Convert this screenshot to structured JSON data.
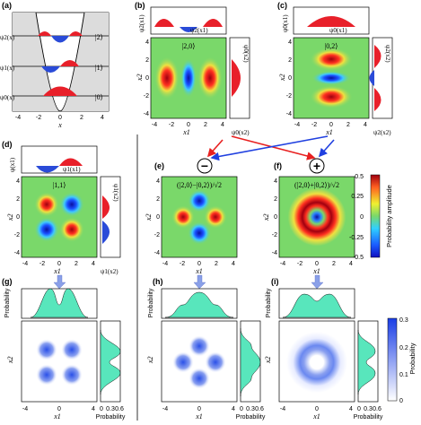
{
  "panels": {
    "a": {
      "label": "(a)",
      "kets": [
        "|2⟩",
        "|1⟩",
        "|0⟩"
      ],
      "psis": [
        "ψ2(x)",
        "ψ1(x)",
        "ψ0(x)"
      ],
      "xticks": [
        "-4",
        "-2",
        "0",
        "2",
        "4"
      ],
      "xlabel": "x"
    },
    "b": {
      "label": "(b)",
      "ket": "|2,0⟩",
      "top_fn": "ψ2(x1)",
      "top_axis": "ψ2(x1)",
      "side_fn": "ψ0(x2)",
      "side_axis": "ψ0(x2)"
    },
    "c": {
      "label": "(c)",
      "ket": "|0,2⟩",
      "top_fn": "ψ0(x1)",
      "top_axis": "ψ0(x1)",
      "side_fn": "ψ2(x2)",
      "side_axis": "ψ2(x2)"
    },
    "d": {
      "label": "(d)",
      "ket": "|1,1⟩",
      "top_fn": "ψ1(x1)",
      "top_axis": "ψ(x1)",
      "side_fn": "ψ1(x2)",
      "side_axis": "ψ1(x2)"
    },
    "e": {
      "label": "(e)",
      "ket": "(|2,0⟩−|0,2⟩)/√2"
    },
    "f": {
      "label": "(f)",
      "ket": "(|2,0⟩+|0,2⟩)/√2"
    },
    "g": {
      "label": "(g)"
    },
    "h": {
      "label": "(h)"
    },
    "i": {
      "label": "(i)"
    }
  },
  "axes": {
    "x1": "x1",
    "x2": "x2",
    "x": "x",
    "prob": "Probability",
    "ticks_map": [
      "-4",
      "-2",
      "0",
      "2",
      "4"
    ],
    "ticks_y": [
      "4",
      "2",
      "0",
      "-2",
      "-4"
    ],
    "ticks_prob": [
      "0",
      "0.3",
      "0.6"
    ],
    "ticks_side": [
      "-1",
      "0",
      "1"
    ],
    "ticks_side_c": [
      "1",
      "0",
      "-1"
    ]
  },
  "operators": {
    "minus": "−",
    "plus": "+"
  },
  "colorbars": {
    "amp": {
      "title": "Probability amplitude",
      "ticks": [
        "0.5",
        "0.25",
        "0",
        "-0.25",
        "-0.5"
      ],
      "range": [
        -0.5,
        0.5
      ]
    },
    "prob": {
      "title": "Probability",
      "ticks": [
        "0.3",
        "0.2",
        "0.1",
        "0"
      ],
      "range": [
        0,
        0.3
      ]
    }
  },
  "colors": {
    "red": "#e8202a",
    "blue": "#2a4bd8",
    "mint": "#58e6bc",
    "green": "#7ad86a",
    "arrow_red": "#e82020",
    "arrow_blue": "#2040e0",
    "blue_arrow_down": "#8aa0e8"
  }
}
